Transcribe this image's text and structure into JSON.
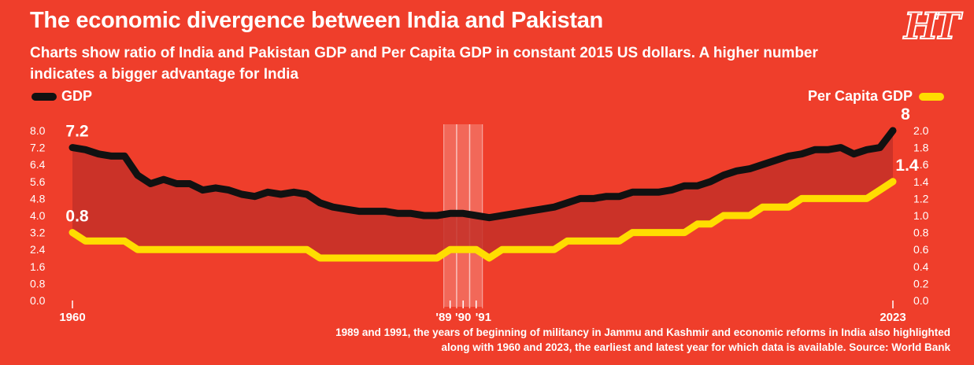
{
  "title": "The economic divergence between India and Pakistan",
  "subtitle": "Charts show ratio of India and Pakistan GDP and Per Capita GDP in constant 2015 US dollars. A higher number indicates a bigger advantage for India",
  "logo_text": "HT",
  "note": "1989 and 1991, the years of beginning of militancy in Jammu and Kashmir and economic reforms in India also highlighted along with 1960 and 2023, the earliest and latest year for which data is available. Source: World Bank",
  "colors": {
    "background": "#ef3e2b",
    "gdp": "#111111",
    "per_capita": "#ffdd00",
    "fill": "#c43028"
  },
  "chart_data": {
    "type": "line",
    "x": [
      1960,
      1961,
      1962,
      1963,
      1964,
      1965,
      1966,
      1967,
      1968,
      1969,
      1970,
      1971,
      1972,
      1973,
      1974,
      1975,
      1976,
      1977,
      1978,
      1979,
      1980,
      1981,
      1982,
      1983,
      1984,
      1985,
      1986,
      1987,
      1988,
      1989,
      1990,
      1991,
      1992,
      1993,
      1994,
      1995,
      1996,
      1997,
      1998,
      1999,
      2000,
      2001,
      2002,
      2003,
      2004,
      2005,
      2006,
      2007,
      2008,
      2009,
      2010,
      2011,
      2012,
      2013,
      2014,
      2015,
      2016,
      2017,
      2018,
      2019,
      2020,
      2021,
      2022,
      2023
    ],
    "series": [
      {
        "name": "GDP",
        "axis": "left",
        "values": [
          7.2,
          7.1,
          6.9,
          6.8,
          6.8,
          5.9,
          5.5,
          5.7,
          5.5,
          5.5,
          5.2,
          5.3,
          5.2,
          5.0,
          4.9,
          5.1,
          5.0,
          5.1,
          5.0,
          4.6,
          4.4,
          4.3,
          4.2,
          4.2,
          4.2,
          4.1,
          4.1,
          4.0,
          4.0,
          4.1,
          4.1,
          4.0,
          3.9,
          4.0,
          4.1,
          4.2,
          4.3,
          4.4,
          4.6,
          4.8,
          4.8,
          4.9,
          4.9,
          5.1,
          5.1,
          5.1,
          5.2,
          5.4,
          5.4,
          5.6,
          5.9,
          6.1,
          6.2,
          6.4,
          6.6,
          6.8,
          6.9,
          7.1,
          7.1,
          7.2,
          6.9,
          7.1,
          7.2,
          8.0
        ]
      },
      {
        "name": "Per Capita GDP",
        "axis": "right",
        "values": [
          0.8,
          0.7,
          0.7,
          0.7,
          0.7,
          0.6,
          0.6,
          0.6,
          0.6,
          0.6,
          0.6,
          0.6,
          0.6,
          0.6,
          0.6,
          0.6,
          0.6,
          0.6,
          0.6,
          0.5,
          0.5,
          0.5,
          0.5,
          0.5,
          0.5,
          0.5,
          0.5,
          0.5,
          0.5,
          0.6,
          0.6,
          0.6,
          0.5,
          0.6,
          0.6,
          0.6,
          0.6,
          0.6,
          0.7,
          0.7,
          0.7,
          0.7,
          0.7,
          0.8,
          0.8,
          0.8,
          0.8,
          0.8,
          0.9,
          0.9,
          1.0,
          1.0,
          1.0,
          1.1,
          1.1,
          1.1,
          1.2,
          1.2,
          1.2,
          1.2,
          1.2,
          1.2,
          1.3,
          1.4
        ]
      }
    ],
    "left_axis": {
      "ylim": [
        0,
        8
      ],
      "ticks": [
        "0.0",
        "0.8",
        "1.6",
        "2.4",
        "3.2",
        "4.0",
        "4.8",
        "5.6",
        "6.4",
        "7.2",
        "8.0"
      ]
    },
    "right_axis": {
      "ylim": [
        0,
        2
      ],
      "ticks": [
        "0.0",
        "0.2",
        "0.4",
        "0.6",
        "0.8",
        "1.0",
        "1.2",
        "1.4",
        "1.6",
        "1.8",
        "2.0"
      ]
    },
    "x_ticks": [
      {
        "year": 1960,
        "label": "1960"
      },
      {
        "year": 1989,
        "label": "'89"
      },
      {
        "year": 1990,
        "label": "'90"
      },
      {
        "year": 1991,
        "label": "'91"
      },
      {
        "year": 2023,
        "label": "2023"
      }
    ],
    "highlight_years": [
      1989,
      1990,
      1991
    ],
    "annotations": [
      {
        "year": 1960,
        "series": "GDP",
        "label": "7.2"
      },
      {
        "year": 1960,
        "series": "Per Capita GDP",
        "label": "0.8"
      },
      {
        "year": 2023,
        "series": "GDP",
        "label": "8"
      },
      {
        "year": 2023,
        "series": "Per Capita GDP",
        "label": "1.4"
      }
    ],
    "legend": [
      {
        "name": "GDP",
        "placement": "top-left"
      },
      {
        "name": "Per Capita GDP",
        "placement": "top-right"
      }
    ],
    "grid": false
  }
}
